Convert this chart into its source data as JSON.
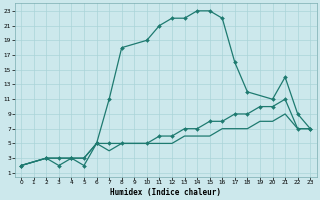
{
  "xlabel": "Humidex (Indice chaleur)",
  "bg_color": "#cce8ec",
  "grid_color": "#aad4d8",
  "line_color": "#1e7a70",
  "xlim": [
    -0.5,
    23.5
  ],
  "ylim": [
    0.5,
    24
  ],
  "xticks": [
    0,
    1,
    2,
    3,
    4,
    5,
    6,
    7,
    8,
    9,
    10,
    11,
    12,
    13,
    14,
    15,
    16,
    17,
    18,
    19,
    20,
    21,
    22,
    23
  ],
  "yticks": [
    1,
    3,
    5,
    7,
    9,
    11,
    13,
    15,
    17,
    19,
    21,
    23
  ],
  "curve1_x": [
    0,
    2,
    3,
    4,
    5,
    6,
    7,
    8,
    10,
    11,
    12,
    13,
    14,
    15,
    16,
    17,
    18,
    20,
    21,
    22,
    23
  ],
  "curve1_y": [
    2,
    3,
    2,
    3,
    2,
    5,
    11,
    18,
    19,
    21,
    22,
    22,
    23,
    23,
    22,
    16,
    12,
    11,
    14,
    9,
    7
  ],
  "curve2_x": [
    0,
    2,
    3,
    4,
    5,
    6,
    7,
    8,
    10,
    11,
    12,
    13,
    14,
    15,
    16,
    17,
    18,
    19,
    20,
    21,
    22,
    23
  ],
  "curve2_y": [
    2,
    3,
    3,
    3,
    3,
    5,
    5,
    5,
    5,
    6,
    6,
    7,
    7,
    8,
    8,
    9,
    9,
    10,
    10,
    11,
    7,
    7
  ],
  "curve3_x": [
    0,
    2,
    3,
    4,
    5,
    6,
    7,
    8,
    10,
    11,
    12,
    13,
    14,
    15,
    16,
    17,
    18,
    19,
    20,
    21,
    22,
    23
  ],
  "curve3_y": [
    2,
    3,
    3,
    3,
    3,
    5,
    4,
    5,
    5,
    5,
    5,
    6,
    6,
    6,
    7,
    7,
    7,
    8,
    8,
    9,
    7,
    7
  ]
}
